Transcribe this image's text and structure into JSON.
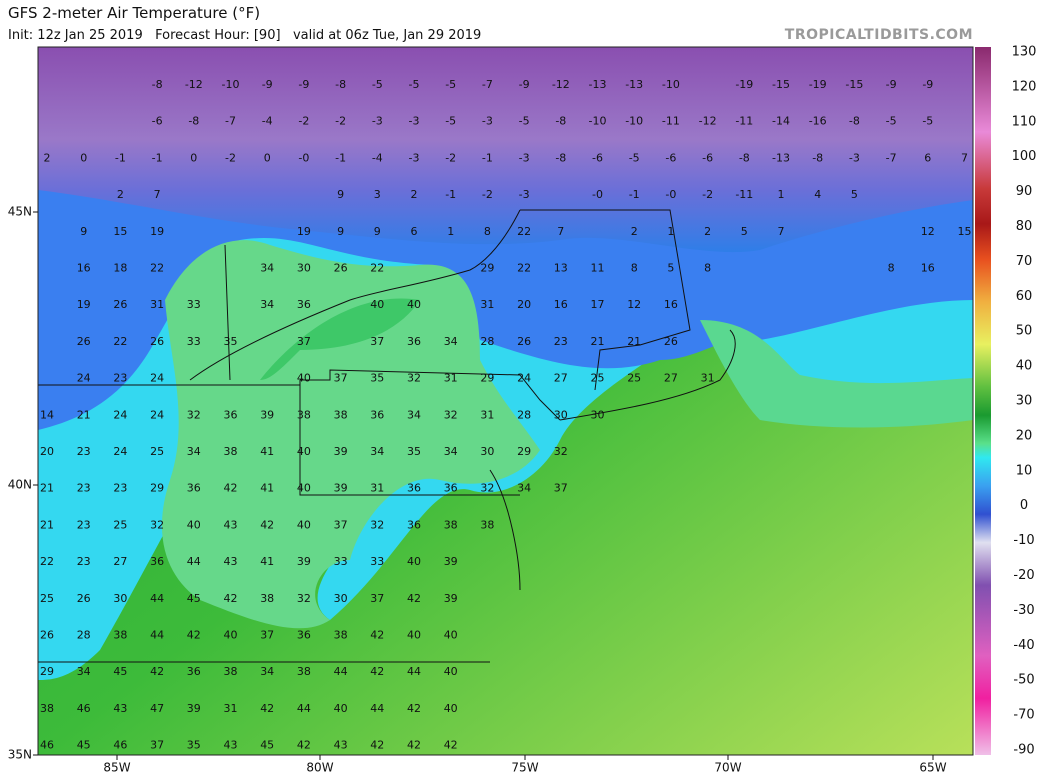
{
  "header": {
    "title": "GFS 2-meter Air Temperature (°F)",
    "subtitle": "Init: 12z Jan 25 2019   Forecast Hour: [90]   valid at 06z Tue, Jan 29 2019",
    "site": "TROPICALTIDBITS.COM"
  },
  "map": {
    "rows": [
      [
        null,
        null,
        null,
        "-8",
        "-12",
        "-10",
        "-9",
        "-9",
        "-8",
        "-5",
        "-5",
        "-5",
        "-7",
        "-9",
        "-12",
        "-13",
        "-13",
        "-10",
        null,
        "-19",
        "-15",
        "-19",
        "-15",
        "-9",
        "-9",
        null
      ],
      [
        null,
        null,
        null,
        "-6",
        "-8",
        "-7",
        "-4",
        "-2",
        "-2",
        "-3",
        "-3",
        "-5",
        "-3",
        "-5",
        "-8",
        "-10",
        "-10",
        "-11",
        "-12",
        "-11",
        "-14",
        "-16",
        "-8",
        "-5",
        "-5",
        null
      ],
      [
        "2",
        "0",
        "-1",
        "-1",
        "0",
        "-2",
        "0",
        "-0",
        "-1",
        "-4",
        "-3",
        "-2",
        "-1",
        "-3",
        "-8",
        "-6",
        "-5",
        "-6",
        "-6",
        "-8",
        "-13",
        "-8",
        "-3",
        "-7",
        "6",
        "7"
      ],
      [
        null,
        null,
        "2",
        "7",
        null,
        null,
        null,
        null,
        "9",
        "3",
        "2",
        "-1",
        "-2",
        "-3",
        null,
        "-0",
        "-1",
        "-0",
        "-2",
        "-11",
        "1",
        "4",
        "5",
        null,
        null,
        null
      ],
      [
        null,
        "9",
        "15",
        "19",
        null,
        null,
        null,
        "19",
        "9",
        "9",
        "6",
        "1",
        "8",
        "22",
        "7",
        null,
        "2",
        "1",
        "2",
        "5",
        "7",
        null,
        null,
        null,
        "12",
        "15"
      ],
      [
        null,
        "16",
        "18",
        "22",
        null,
        null,
        "34",
        "30",
        "26",
        "22",
        null,
        null,
        "29",
        "22",
        "13",
        "11",
        "8",
        "5",
        "8",
        null,
        null,
        null,
        null,
        "8",
        "16",
        null
      ],
      [
        null,
        "19",
        "26",
        "31",
        "33",
        null,
        "34",
        "36",
        null,
        "40",
        "40",
        null,
        "31",
        "20",
        "16",
        "17",
        "12",
        "16",
        null,
        null,
        null,
        null,
        null,
        null,
        null,
        null
      ],
      [
        null,
        "26",
        "22",
        "26",
        "33",
        "35",
        null,
        "37",
        null,
        "37",
        "36",
        "34",
        "28",
        "26",
        "23",
        "21",
        "21",
        "26",
        null,
        null,
        null,
        null,
        null,
        null,
        null,
        null
      ],
      [
        null,
        "24",
        "23",
        "24",
        null,
        null,
        null,
        "40",
        "37",
        "35",
        "32",
        "31",
        "29",
        "24",
        "27",
        "25",
        "25",
        "27",
        "31",
        null,
        null,
        null,
        null,
        null,
        null,
        null
      ],
      [
        "14",
        "21",
        "24",
        "24",
        "32",
        "36",
        "39",
        "38",
        "38",
        "36",
        "34",
        "32",
        "31",
        "28",
        "30",
        "30",
        null,
        null,
        null,
        null,
        null,
        null,
        null,
        null,
        null,
        null
      ],
      [
        "20",
        "23",
        "24",
        "25",
        "34",
        "38",
        "41",
        "40",
        "39",
        "34",
        "35",
        "34",
        "30",
        "29",
        "32",
        null,
        null,
        null,
        null,
        null,
        null,
        null,
        null,
        null,
        null,
        null
      ],
      [
        "21",
        "23",
        "23",
        "29",
        "36",
        "42",
        "41",
        "40",
        "39",
        "31",
        "36",
        "36",
        "32",
        "34",
        "37",
        null,
        null,
        null,
        null,
        null,
        null,
        null,
        null,
        null,
        null,
        null
      ],
      [
        "21",
        "23",
        "25",
        "32",
        "40",
        "43",
        "42",
        "40",
        "37",
        "32",
        "36",
        "38",
        "38",
        null,
        null,
        null,
        null,
        null,
        null,
        null,
        null,
        null,
        null,
        null,
        null,
        null
      ],
      [
        "22",
        "23",
        "27",
        "36",
        "44",
        "43",
        "41",
        "39",
        "33",
        "33",
        "40",
        "39",
        null,
        null,
        null,
        null,
        null,
        null,
        null,
        null,
        null,
        null,
        null,
        null,
        null,
        null
      ],
      [
        "25",
        "26",
        "30",
        "44",
        "45",
        "42",
        "38",
        "32",
        "30",
        "37",
        "42",
        "39",
        null,
        null,
        null,
        null,
        null,
        null,
        null,
        null,
        null,
        null,
        null,
        null,
        null,
        null
      ],
      [
        "26",
        "28",
        "38",
        "44",
        "42",
        "40",
        "37",
        "36",
        "38",
        "42",
        "40",
        "40",
        null,
        null,
        null,
        null,
        null,
        null,
        null,
        null,
        null,
        null,
        null,
        null,
        null,
        null
      ],
      [
        "29",
        "34",
        "45",
        "42",
        "36",
        "38",
        "34",
        "38",
        "44",
        "42",
        "44",
        "40",
        null,
        null,
        null,
        null,
        null,
        null,
        null,
        null,
        null,
        null,
        null,
        null,
        null,
        null
      ],
      [
        "38",
        "46",
        "43",
        "47",
        "39",
        "31",
        "42",
        "44",
        "40",
        "44",
        "42",
        "40",
        null,
        null,
        null,
        null,
        null,
        null,
        null,
        null,
        null,
        null,
        null,
        null,
        null,
        null
      ],
      [
        "46",
        "45",
        "46",
        "37",
        "35",
        "43",
        "45",
        "42",
        "43",
        "42",
        "42",
        "42",
        null,
        null,
        null,
        null,
        null,
        null,
        null,
        null,
        null,
        null,
        null,
        null,
        null,
        null
      ]
    ]
  },
  "axes": {
    "lon": [
      "85W",
      "80W",
      "75W",
      "70W",
      "65W"
    ],
    "lat": [
      "45N",
      "40N",
      "35N"
    ]
  },
  "colorbar": {
    "labels": [
      "130",
      "120",
      "110",
      "100",
      "90",
      "80",
      "70",
      "60",
      "50",
      "40",
      "30",
      "20",
      "10",
      "0",
      "-10",
      "-20",
      "-30",
      "-40",
      "-50",
      "-70",
      "-90"
    ]
  }
}
